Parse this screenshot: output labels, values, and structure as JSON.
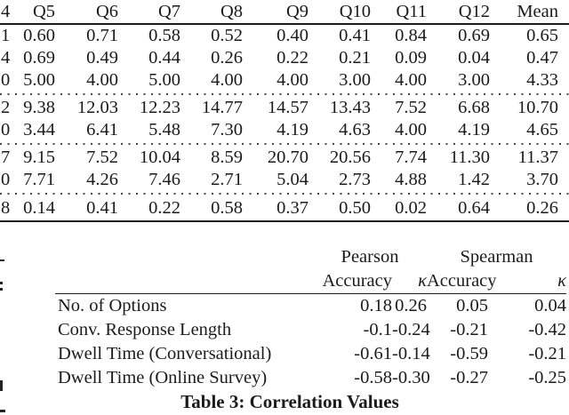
{
  "colors": {
    "background": "#ffffff",
    "text": "#1b1b1b",
    "rule": "#1b1b1b",
    "dotted_separator": "#474747"
  },
  "top_table": {
    "clipped_header_fragment": "4",
    "columns": [
      "Q5",
      "Q6",
      "Q7",
      "Q8",
      "Q9",
      "Q10",
      "Q11",
      "Q12",
      "Mean"
    ],
    "rows": [
      {
        "clipped_fragment": "1",
        "values": [
          "0.60",
          "0.71",
          "0.58",
          "0.52",
          "0.40",
          "0.41",
          "0.84",
          "0.69",
          "0.65"
        ]
      },
      {
        "clipped_fragment": "4",
        "values": [
          "0.69",
          "0.49",
          "0.44",
          "0.26",
          "0.22",
          "0.21",
          "0.09",
          "0.04",
          "0.47"
        ]
      },
      {
        "clipped_fragment": "0",
        "values": [
          "5.00",
          "4.00",
          "5.00",
          "4.00",
          "4.00",
          "3.00",
          "4.00",
          "3.00",
          "4.33"
        ]
      },
      {
        "clipped_fragment": "2",
        "values": [
          "9.38",
          "12.03",
          "12.23",
          "14.77",
          "14.57",
          "13.43",
          "7.52",
          "6.68",
          "10.70"
        ]
      },
      {
        "clipped_fragment": "0",
        "values": [
          "3.44",
          "6.41",
          "5.48",
          "7.30",
          "4.19",
          "4.63",
          "4.00",
          "4.19",
          "4.65"
        ]
      },
      {
        "clipped_fragment": "7",
        "values": [
          "9.15",
          "7.52",
          "10.04",
          "8.59",
          "20.70",
          "20.56",
          "7.74",
          "11.30",
          "11.37"
        ]
      },
      {
        "clipped_fragment": "0",
        "values": [
          "7.71",
          "4.26",
          "7.46",
          "2.71",
          "5.04",
          "2.73",
          "4.88",
          "1.42",
          "3.70"
        ]
      },
      {
        "clipped_fragment": "8",
        "values": [
          "0.14",
          "0.41",
          "0.22",
          "0.58",
          "0.37",
          "0.50",
          "0.02",
          "0.64",
          "0.26"
        ]
      }
    ],
    "dotted_separator_after_row_index": [
      2,
      4,
      6
    ]
  },
  "correlation_table": {
    "group_headers": [
      "Pearson",
      "Spearman"
    ],
    "sub_headers": [
      "Accuracy",
      "κ",
      "Accuracy",
      "κ"
    ],
    "rows": [
      {
        "label": "No. of Options",
        "values": [
          "0.18",
          "0.26",
          "0.05",
          "0.04"
        ]
      },
      {
        "label": "Conv. Response Length",
        "values": [
          "-0.1",
          "-0.24",
          "-0.21",
          "-0.42"
        ]
      },
      {
        "label": "Dwell Time (Conversational)",
        "values": [
          "-0.61",
          "-0.14",
          "-0.59",
          "-0.21"
        ]
      },
      {
        "label": "Dwell Time (Online Survey)",
        "values": [
          "-0.58",
          "-0.30",
          "-0.27",
          "-0.25"
        ]
      }
    ],
    "caption": "Table 3: Correlation Values"
  }
}
